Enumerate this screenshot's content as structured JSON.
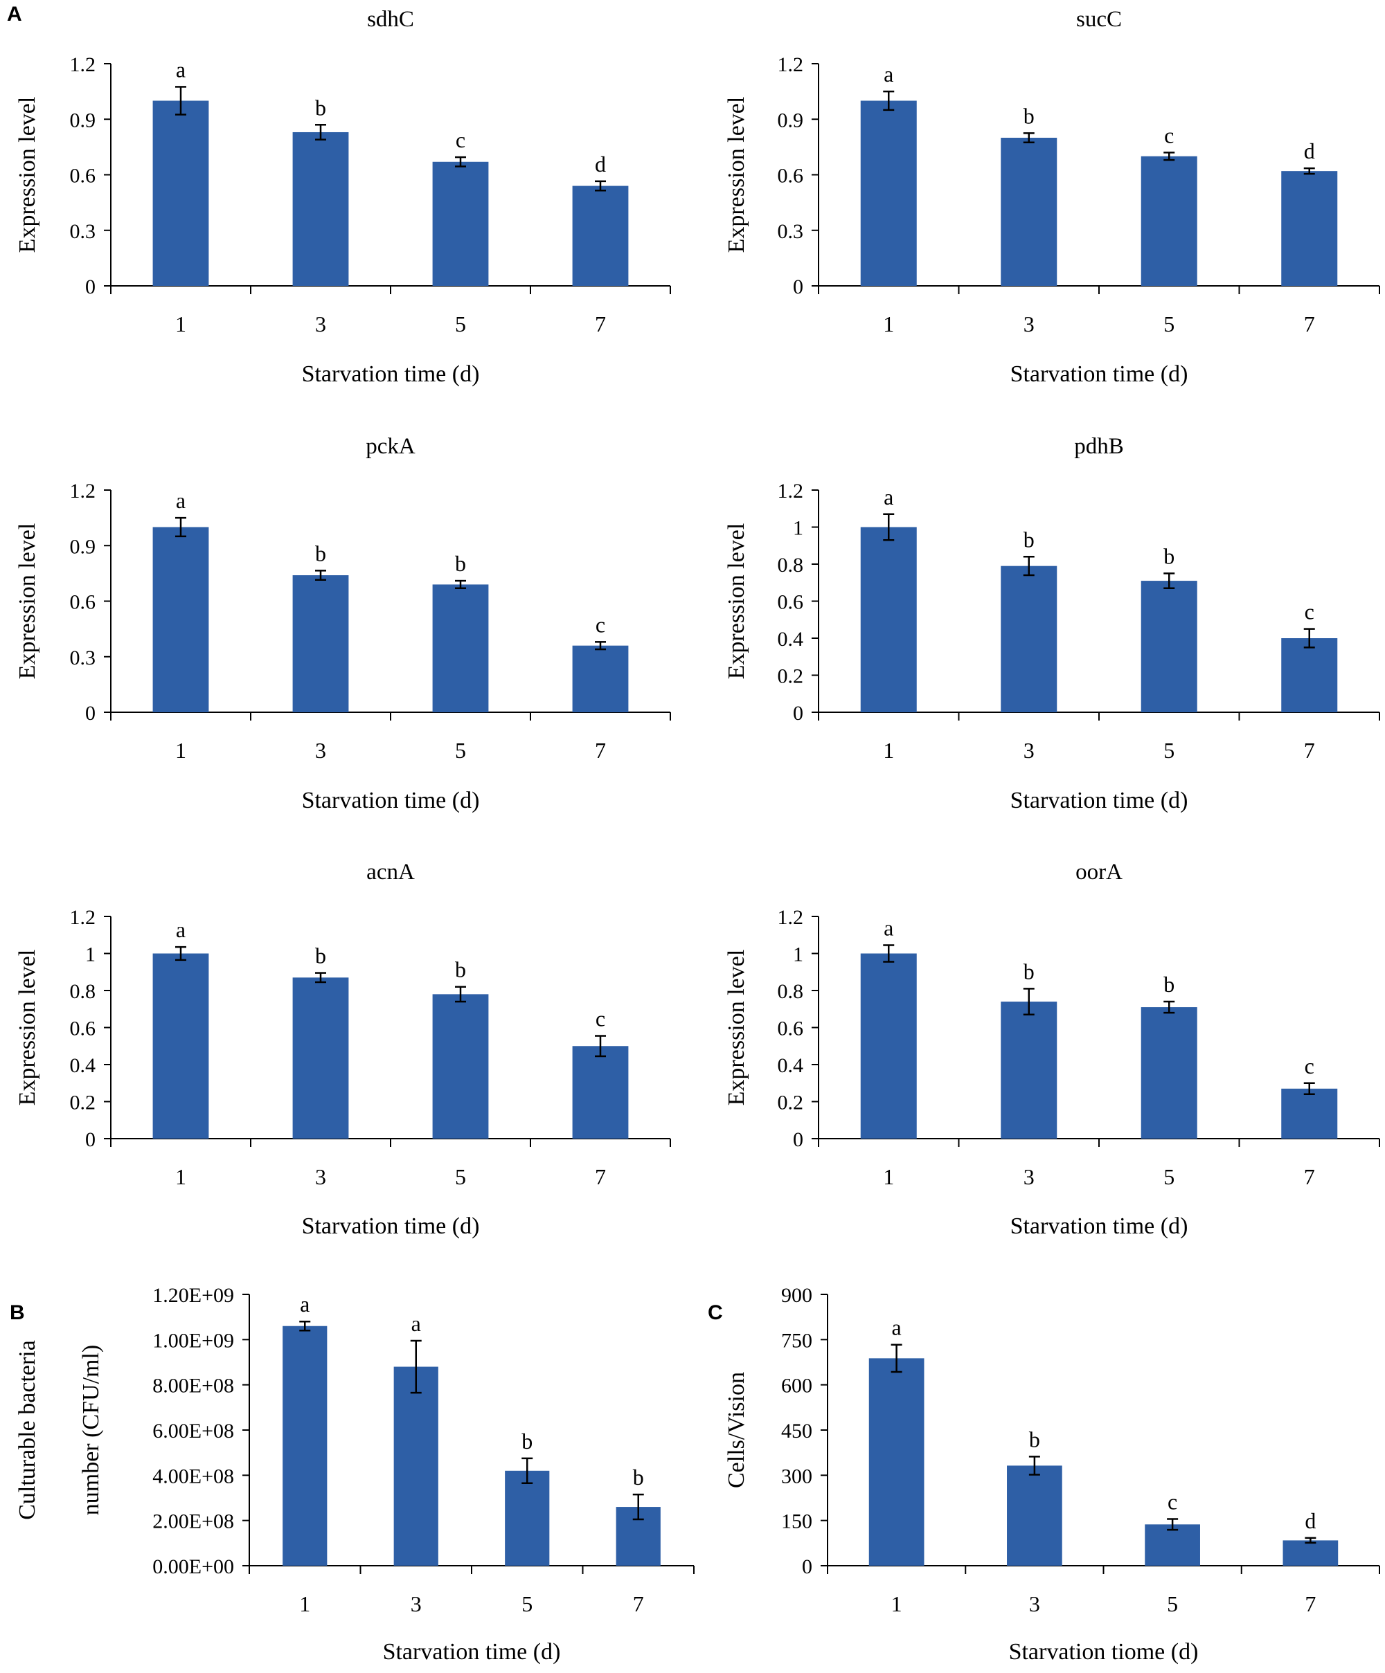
{
  "panel_labels": {
    "A": "A",
    "B": "B",
    "C": "C"
  },
  "colors": {
    "bar": "#2E5FA6",
    "axis": "#000000",
    "text": "#000000"
  },
  "chart_data": [
    {
      "id": "sdhC",
      "panel": "A",
      "type": "bar",
      "title": "sdhC",
      "xlabel": "Starvation time (d)",
      "ylabel": "Expression level",
      "categories": [
        "1",
        "3",
        "5",
        "7"
      ],
      "values": [
        1.0,
        0.83,
        0.67,
        0.54
      ],
      "errors": [
        0.075,
        0.04,
        0.025,
        0.025
      ],
      "letters": [
        "a",
        "b",
        "c",
        "d"
      ],
      "ylim": [
        0,
        1.2
      ],
      "yticks": [
        0,
        0.3,
        0.6,
        0.9,
        1.2
      ],
      "ytick_labels": [
        "0",
        "0.3",
        "0.6",
        "0.9",
        "1.2"
      ]
    },
    {
      "id": "sucC",
      "panel": "A",
      "type": "bar",
      "title": "sucC",
      "xlabel": "Starvation time (d)",
      "ylabel": "Expression level",
      "categories": [
        "1",
        "3",
        "5",
        "7"
      ],
      "values": [
        1.0,
        0.8,
        0.7,
        0.62
      ],
      "errors": [
        0.05,
        0.025,
        0.02,
        0.015
      ],
      "letters": [
        "a",
        "b",
        "c",
        "d"
      ],
      "ylim": [
        0,
        1.2
      ],
      "yticks": [
        0,
        0.3,
        0.6,
        0.9,
        1.2
      ],
      "ytick_labels": [
        "0",
        "0.3",
        "0.6",
        "0.9",
        "1.2"
      ]
    },
    {
      "id": "pckA",
      "panel": "A",
      "type": "bar",
      "title": "pckA",
      "xlabel": "Starvation time (d)",
      "ylabel": "Expression level",
      "categories": [
        "1",
        "3",
        "5",
        "7"
      ],
      "values": [
        1.0,
        0.74,
        0.69,
        0.36
      ],
      "errors": [
        0.05,
        0.025,
        0.02,
        0.02
      ],
      "letters": [
        "a",
        "b",
        "b",
        "c"
      ],
      "ylim": [
        0,
        1.2
      ],
      "yticks": [
        0,
        0.3,
        0.6,
        0.9,
        1.2
      ],
      "ytick_labels": [
        "0",
        "0.3",
        "0.6",
        "0.9",
        "1.2"
      ]
    },
    {
      "id": "pdhB",
      "panel": "A",
      "type": "bar",
      "title": "pdhB",
      "xlabel": "Starvation time (d)",
      "ylabel": "Expression level",
      "categories": [
        "1",
        "3",
        "5",
        "7"
      ],
      "values": [
        1.0,
        0.79,
        0.71,
        0.4
      ],
      "errors": [
        0.07,
        0.05,
        0.04,
        0.05
      ],
      "letters": [
        "a",
        "b",
        "b",
        "c"
      ],
      "ylim": [
        0,
        1.2
      ],
      "yticks": [
        0,
        0.2,
        0.4,
        0.6,
        0.8,
        1.0,
        1.2
      ],
      "ytick_labels": [
        "0",
        "0.2",
        "0.4",
        "0.6",
        "0.8",
        "1",
        "1.2"
      ]
    },
    {
      "id": "acnA",
      "panel": "A",
      "type": "bar",
      "title": "acnA",
      "xlabel": "Starvation time (d)",
      "ylabel": "Expression level",
      "categories": [
        "1",
        "3",
        "5",
        "7"
      ],
      "values": [
        1.0,
        0.87,
        0.78,
        0.5
      ],
      "errors": [
        0.035,
        0.025,
        0.04,
        0.055
      ],
      "letters": [
        "a",
        "b",
        "b",
        "c"
      ],
      "ylim": [
        0,
        1.2
      ],
      "yticks": [
        0,
        0.2,
        0.4,
        0.6,
        0.8,
        1.0,
        1.2
      ],
      "ytick_labels": [
        "0",
        "0.2",
        "0.4",
        "0.6",
        "0.8",
        "1",
        "1.2"
      ]
    },
    {
      "id": "oorA",
      "panel": "A",
      "type": "bar",
      "title": "oorA",
      "xlabel": "Starvation time (d)",
      "ylabel": "Expression level",
      "categories": [
        "1",
        "3",
        "5",
        "7"
      ],
      "values": [
        1.0,
        0.74,
        0.71,
        0.27
      ],
      "errors": [
        0.045,
        0.07,
        0.03,
        0.03
      ],
      "letters": [
        "a",
        "b",
        "b",
        "c"
      ],
      "ylim": [
        0,
        1.2
      ],
      "yticks": [
        0,
        0.2,
        0.4,
        0.6,
        0.8,
        1.0,
        1.2
      ],
      "ytick_labels": [
        "0",
        "0.2",
        "0.4",
        "0.6",
        "0.8",
        "1",
        "1.2"
      ]
    },
    {
      "id": "culturable",
      "panel": "B",
      "type": "bar",
      "title": "",
      "xlabel": "Starvation time (d)",
      "ylabel_lines": [
        "Culturable bacteria",
        "number (CFU/ml)"
      ],
      "categories": [
        "1",
        "3",
        "5",
        "7"
      ],
      "values": [
        1060000000,
        880000000,
        420000000,
        260000000
      ],
      "errors": [
        20000000,
        115000000,
        55000000,
        55000000
      ],
      "letters": [
        "a",
        "a",
        "b",
        "b"
      ],
      "ylim": [
        0,
        1200000000
      ],
      "yticks": [
        0,
        200000000,
        400000000,
        600000000,
        800000000,
        1000000000,
        1200000000
      ],
      "ytick_labels": [
        "0.00E+00",
        "2.00E+08",
        "4.00E+08",
        "6.00E+08",
        "8.00E+08",
        "1.00E+09",
        "1.20E+09"
      ]
    },
    {
      "id": "cells",
      "panel": "C",
      "type": "bar",
      "title": "",
      "xlabel": "Starvation tiome (d)",
      "ylabel": "Cells/Vision",
      "categories": [
        "1",
        "3",
        "5",
        "7"
      ],
      "values": [
        688,
        332,
        137,
        84
      ],
      "errors": [
        45,
        30,
        18,
        8
      ],
      "letters": [
        "a",
        "b",
        "c",
        "d"
      ],
      "ylim": [
        0,
        900
      ],
      "yticks": [
        0,
        150,
        300,
        450,
        600,
        750,
        900
      ],
      "ytick_labels": [
        "0",
        "150",
        "300",
        "450",
        "600",
        "750",
        "900"
      ]
    }
  ]
}
